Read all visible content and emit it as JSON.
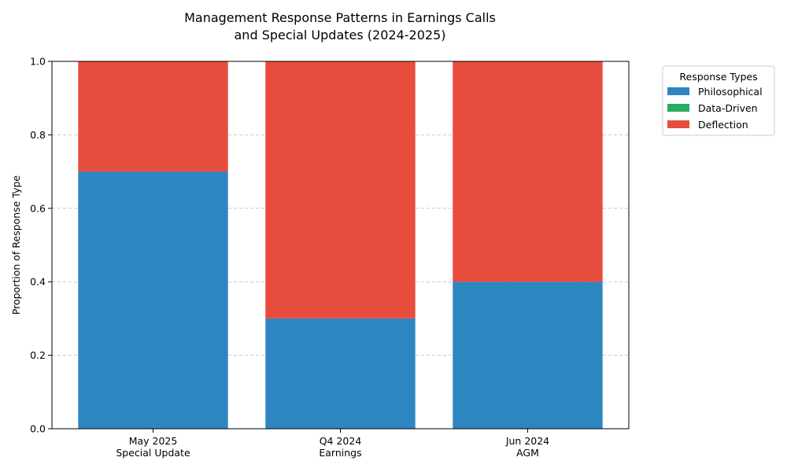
{
  "chart_data": {
    "type": "bar",
    "stacked": true,
    "title": [
      "Management Response Patterns in Earnings Calls",
      "and Special Updates (2024-2025)"
    ],
    "xlabel": "",
    "ylabel": "Proportion of Response Type",
    "ylim": [
      0,
      1
    ],
    "yticks": [
      "0.0",
      "0.2",
      "0.4",
      "0.6",
      "0.8",
      "1.0"
    ],
    "grid": "y-dashed",
    "categories": [
      [
        "May 2025",
        "Special Update"
      ],
      [
        "Q4 2024",
        "Earnings"
      ],
      [
        "Jun 2024",
        "AGM"
      ]
    ],
    "series": [
      {
        "name": "Philosophical",
        "color": "#2e86c1",
        "values": [
          0.7,
          0.3,
          0.4
        ]
      },
      {
        "name": "Data-Driven",
        "color": "#27ae60",
        "values": [
          0.0,
          0.0,
          0.0
        ]
      },
      {
        "name": "Deflection",
        "color": "#e74c3c",
        "values": [
          0.3,
          0.7,
          0.6
        ]
      }
    ],
    "legend": {
      "title": "Response Types",
      "placement": "outside-top-right"
    }
  }
}
